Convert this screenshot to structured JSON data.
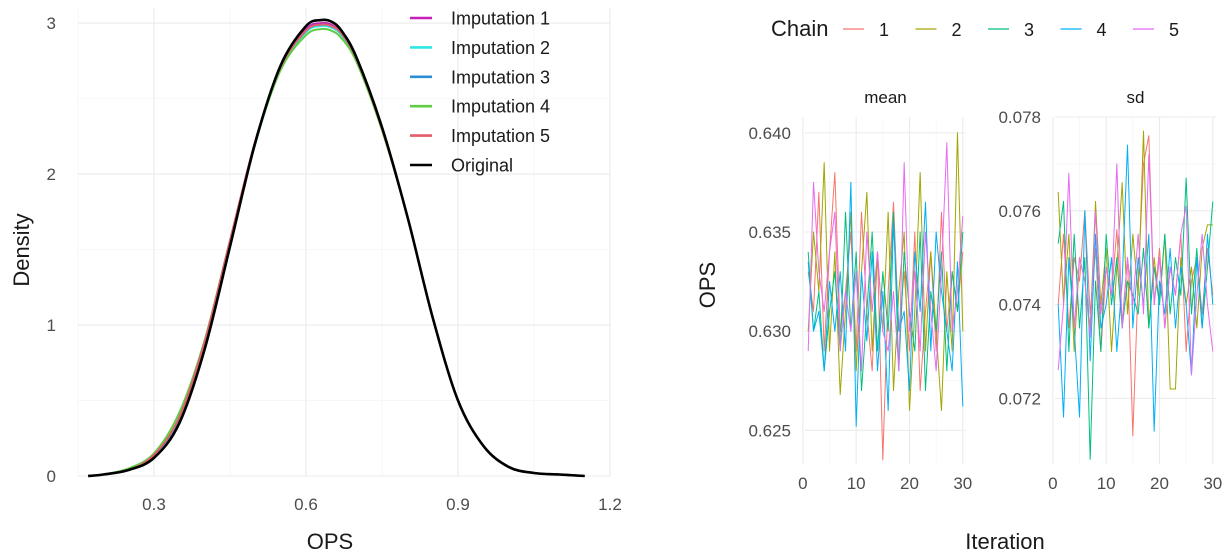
{
  "chart_data": [
    {
      "type": "line",
      "xlabel": "OPS",
      "ylabel": "Density",
      "xlim": [
        0.15,
        1.2
      ],
      "ylim": [
        0,
        3.1
      ],
      "xticks": [
        0.3,
        0.6,
        0.9,
        1.2
      ],
      "xtick_labels": [
        "0.3",
        "0.6",
        "0.9",
        "1.2"
      ],
      "yticks": [
        0,
        1,
        2,
        3
      ],
      "ytick_labels": [
        "0",
        "1",
        "2",
        "3"
      ],
      "grid": true,
      "legend": "top-right",
      "series": [
        {
          "name": "Imputation 1",
          "color": "#c71fb9",
          "x": [
            0.17,
            0.2,
            0.25,
            0.3,
            0.35,
            0.4,
            0.45,
            0.5,
            0.55,
            0.6,
            0.63,
            0.65,
            0.67,
            0.7,
            0.75,
            0.8,
            0.85,
            0.9,
            0.95,
            1.0,
            1.05,
            1.1,
            1.15
          ],
          "y": [
            0.0,
            0.01,
            0.04,
            0.13,
            0.38,
            0.88,
            1.55,
            2.22,
            2.71,
            2.96,
            3.0,
            2.99,
            2.93,
            2.76,
            2.3,
            1.72,
            1.05,
            0.5,
            0.2,
            0.06,
            0.02,
            0.01,
            0.0
          ]
        },
        {
          "name": "Imputation 2",
          "color": "#2ee6e6",
          "x": [
            0.17,
            0.2,
            0.25,
            0.3,
            0.35,
            0.4,
            0.45,
            0.5,
            0.55,
            0.6,
            0.63,
            0.65,
            0.67,
            0.7,
            0.75,
            0.8,
            0.85,
            0.9,
            0.95,
            1.0,
            1.05,
            1.1,
            1.15
          ],
          "y": [
            0.0,
            0.01,
            0.04,
            0.13,
            0.37,
            0.86,
            1.53,
            2.2,
            2.7,
            2.94,
            2.98,
            2.97,
            2.92,
            2.75,
            2.3,
            1.72,
            1.05,
            0.5,
            0.2,
            0.06,
            0.02,
            0.01,
            0.0
          ]
        },
        {
          "name": "Imputation 3",
          "color": "#2b8fd6",
          "x": [
            0.17,
            0.2,
            0.25,
            0.3,
            0.35,
            0.4,
            0.45,
            0.5,
            0.55,
            0.6,
            0.63,
            0.65,
            0.67,
            0.7,
            0.75,
            0.8,
            0.85,
            0.9,
            0.95,
            1.0,
            1.05,
            1.1,
            1.15
          ],
          "y": [
            0.0,
            0.01,
            0.04,
            0.14,
            0.38,
            0.87,
            1.54,
            2.21,
            2.71,
            2.95,
            2.99,
            2.98,
            2.93,
            2.76,
            2.3,
            1.72,
            1.05,
            0.5,
            0.2,
            0.06,
            0.02,
            0.01,
            0.0
          ]
        },
        {
          "name": "Imputation 4",
          "color": "#5fce45",
          "x": [
            0.17,
            0.2,
            0.25,
            0.3,
            0.35,
            0.4,
            0.45,
            0.5,
            0.55,
            0.6,
            0.63,
            0.65,
            0.67,
            0.7,
            0.75,
            0.8,
            0.85,
            0.9,
            0.95,
            1.0,
            1.05,
            1.1,
            1.15
          ],
          "y": [
            0.0,
            0.01,
            0.05,
            0.15,
            0.42,
            0.9,
            1.56,
            2.21,
            2.69,
            2.92,
            2.96,
            2.95,
            2.9,
            2.74,
            2.29,
            1.72,
            1.05,
            0.5,
            0.2,
            0.06,
            0.02,
            0.01,
            0.0
          ]
        },
        {
          "name": "Imputation 5",
          "color": "#e35d6a",
          "x": [
            0.17,
            0.2,
            0.25,
            0.3,
            0.35,
            0.4,
            0.45,
            0.5,
            0.55,
            0.6,
            0.63,
            0.65,
            0.67,
            0.7,
            0.75,
            0.8,
            0.85,
            0.9,
            0.95,
            1.0,
            1.05,
            1.1,
            1.15
          ],
          "y": [
            0.0,
            0.01,
            0.04,
            0.14,
            0.39,
            0.89,
            1.56,
            2.22,
            2.71,
            2.95,
            2.99,
            2.98,
            2.93,
            2.76,
            2.3,
            1.72,
            1.05,
            0.5,
            0.2,
            0.06,
            0.02,
            0.01,
            0.0
          ]
        },
        {
          "name": "Original",
          "color": "#000000",
          "x": [
            0.17,
            0.2,
            0.25,
            0.3,
            0.35,
            0.4,
            0.45,
            0.5,
            0.55,
            0.6,
            0.63,
            0.65,
            0.67,
            0.7,
            0.75,
            0.8,
            0.85,
            0.9,
            0.95,
            1.0,
            1.05,
            1.1,
            1.15
          ],
          "y": [
            0.0,
            0.01,
            0.04,
            0.12,
            0.35,
            0.84,
            1.52,
            2.21,
            2.72,
            2.98,
            3.02,
            3.01,
            2.95,
            2.77,
            2.31,
            1.72,
            1.05,
            0.5,
            0.2,
            0.06,
            0.02,
            0.01,
            0.0
          ]
        }
      ]
    },
    {
      "type": "line",
      "xlabel": "Iteration",
      "ylabel": "OPS",
      "legend": "top",
      "legend_title": "Chain",
      "grid": true,
      "series": [
        {
          "name": "1",
          "color": "#f8766d"
        },
        {
          "name": "2",
          "color": "#a3a500"
        },
        {
          "name": "3",
          "color": "#00bf7d"
        },
        {
          "name": "4",
          "color": "#00b0f6"
        },
        {
          "name": "5",
          "color": "#e76bf3"
        }
      ],
      "x": [
        1,
        2,
        3,
        4,
        5,
        6,
        7,
        8,
        9,
        10,
        11,
        12,
        13,
        14,
        15,
        16,
        17,
        18,
        19,
        20,
        21,
        22,
        23,
        24,
        25,
        26,
        27,
        28,
        29,
        30
      ],
      "xlim": [
        0.4,
        30.6
      ],
      "xticks": [
        0,
        10,
        20,
        30
      ],
      "xtick_labels": [
        "0",
        "10",
        "20",
        "30"
      ],
      "panels": [
        {
          "title": "mean",
          "ylim": [
            0.6233,
            0.6408
          ],
          "yticks": [
            0.625,
            0.63,
            0.635,
            0.64
          ],
          "ytick_labels": [
            "0.625",
            "0.630",
            "0.635",
            "0.640"
          ],
          "values": [
            [
              0.633,
              0.631,
              0.637,
              0.629,
              0.634,
              0.638,
              0.63,
              0.632,
              0.635,
              0.629,
              0.636,
              0.631,
              0.628,
              0.634,
              0.6235,
              0.632,
              0.6365,
              0.63,
              0.633,
              0.629,
              0.635,
              0.627,
              0.631,
              0.634,
              0.629,
              0.636,
              0.63,
              0.633,
              0.631,
              0.634
            ],
            [
              0.63,
              0.635,
              0.632,
              0.6385,
              0.629,
              0.634,
              0.6268,
              0.631,
              0.636,
              0.628,
              0.633,
              0.637,
              0.629,
              0.634,
              0.63,
              0.636,
              0.627,
              0.632,
              0.635,
              0.626,
              0.631,
              0.638,
              0.629,
              0.634,
              0.63,
              0.626,
              0.633,
              0.629,
              0.64,
              0.63
            ],
            [
              0.634,
              0.63,
              0.632,
              0.628,
              0.631,
              0.633,
              0.629,
              0.636,
              0.63,
              0.634,
              0.627,
              0.631,
              0.635,
              0.629,
              0.633,
              0.63,
              0.636,
              0.628,
              0.634,
              0.631,
              0.629,
              0.635,
              0.627,
              0.632,
              0.63,
              0.634,
              0.628,
              0.633,
              0.631,
              0.635
            ],
            [
              0.6335,
              0.63,
              0.631,
              0.628,
              0.6325,
              0.63,
              0.633,
              0.629,
              0.6375,
              0.6252,
              0.633,
              0.6295,
              0.634,
              0.628,
              0.632,
              0.626,
              0.6355,
              0.63,
              0.631,
              0.627,
              0.634,
              0.631,
              0.6365,
              0.629,
              0.635,
              0.632,
              0.63,
              0.628,
              0.6335,
              0.6262
            ],
            [
              0.629,
              0.6375,
              0.633,
              0.631,
              0.634,
              0.636,
              0.629,
              0.632,
              0.63,
              0.633,
              0.628,
              0.635,
              0.631,
              0.634,
              0.63,
              0.629,
              0.632,
              0.628,
              0.6385,
              0.63,
              0.633,
              0.629,
              0.635,
              0.631,
              0.628,
              0.633,
              0.6395,
              0.63,
              0.632,
              0.6358
            ]
          ]
        },
        {
          "title": "sd",
          "ylim": [
            0.0706,
            0.078
          ],
          "yticks": [
            0.072,
            0.074,
            0.076,
            0.078
          ],
          "ytick_labels": [
            "0.072",
            "0.074",
            "0.076",
            "0.078"
          ],
          "values": [
            [
              0.074,
              0.0755,
              0.0735,
              0.075,
              0.0745,
              0.076,
              0.0738,
              0.0752,
              0.073,
              0.0748,
              0.0742,
              0.0756,
              0.0736,
              0.075,
              0.0712,
              0.0745,
              0.077,
              0.0776,
              0.074,
              0.0752,
              0.0735,
              0.0748,
              0.0742,
              0.0755,
              0.073,
              0.0745,
              0.075,
              0.0738,
              0.0752,
              0.0742
            ],
            [
              0.0764,
              0.074,
              0.0755,
              0.073,
              0.075,
              0.0745,
              0.0735,
              0.0762,
              0.074,
              0.0752,
              0.073,
              0.0748,
              0.0766,
              0.0738,
              0.0755,
              0.0742,
              0.0777,
              0.0735,
              0.075,
              0.074,
              0.0755,
              0.0722,
              0.0722,
              0.075,
              0.074,
              0.0748,
              0.0735,
              0.0752,
              0.0757,
              0.0757
            ],
            [
              0.0753,
              0.0762,
              0.073,
              0.0755,
              0.0735,
              0.075,
              0.0707,
              0.0745,
              0.073,
              0.0755,
              0.074,
              0.075,
              0.0735,
              0.0745,
              0.0742,
              0.0738,
              0.0752,
              0.0735,
              0.0748,
              0.074,
              0.0755,
              0.0738,
              0.075,
              0.0742,
              0.0767,
              0.0738,
              0.0752,
              0.0735,
              0.0748,
              0.0762
            ],
            [
              0.074,
              0.0716,
              0.075,
              0.0735,
              0.0716,
              0.076,
              0.0728,
              0.0755,
              0.0735,
              0.074,
              0.075,
              0.073,
              0.0745,
              0.0774,
              0.0735,
              0.075,
              0.074,
              0.0755,
              0.0713,
              0.0745,
              0.0738,
              0.0752,
              0.0735,
              0.0748,
              0.074,
              0.0725,
              0.075,
              0.0735,
              0.0755,
              0.074
            ],
            [
              0.0726,
              0.074,
              0.0768,
              0.0735,
              0.075,
              0.0745,
              0.0733,
              0.076,
              0.0738,
              0.0748,
              0.0742,
              0.077,
              0.0735,
              0.075,
              0.074,
              0.0755,
              0.0738,
              0.0772,
              0.074,
              0.075,
              0.0735,
              0.0748,
              0.0742,
              0.0755,
              0.0761,
              0.0725,
              0.0742,
              0.0755,
              0.074,
              0.073
            ]
          ]
        }
      ]
    }
  ]
}
